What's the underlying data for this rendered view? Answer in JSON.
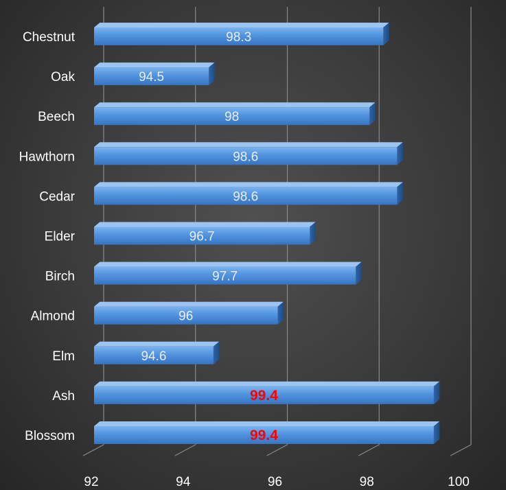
{
  "chart_data": {
    "type": "bar",
    "orientation": "horizontal",
    "style": "3d",
    "categories": [
      "Chestnut",
      "Oak",
      "Beech",
      "Hawthorn",
      "Cedar",
      "Elder",
      "Birch",
      "Almond",
      "Elm",
      "Ash",
      "Blossom"
    ],
    "values": [
      98.3,
      94.5,
      98,
      98.6,
      98.6,
      96.7,
      97.7,
      96,
      94.6,
      99.4,
      99.4
    ],
    "data_labels": [
      "98.3",
      "94.5",
      "98",
      "98.6",
      "98.6",
      "96.7",
      "97.7",
      "96",
      "94.6",
      "99.4",
      "99.4"
    ],
    "highlighted_categories": [
      "Ash",
      "Blossom"
    ],
    "xlim": [
      92,
      100
    ],
    "x_ticks": [
      92,
      94,
      96,
      98,
      100
    ],
    "x_tick_labels": [
      "92",
      "94",
      "96",
      "98",
      "100"
    ],
    "grid": true,
    "legend": "none",
    "title": "",
    "xlabel": "",
    "ylabel": ""
  },
  "colors": {
    "bar_front_top": "#6fa8e8",
    "bar_front_bottom": "#3a7ccc",
    "bar_top": "#9cc4f0",
    "bar_side": "#2a5c9c",
    "label_normal": "#e8eef8",
    "label_highlight": "#ff0000",
    "axis_text": "#ffffff",
    "gridline": "#8a8a8a"
  }
}
